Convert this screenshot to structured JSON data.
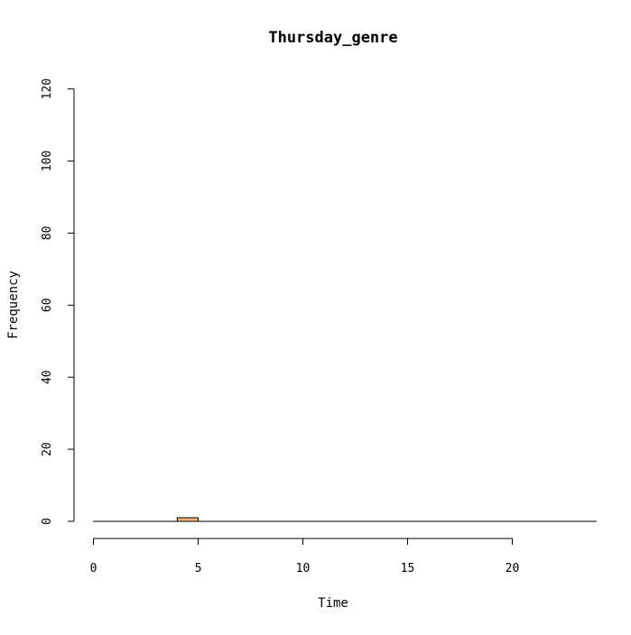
{
  "chart_data": {
    "type": "bar",
    "title": "Thursday_genre",
    "xlabel": "Time",
    "ylabel": "Frequency",
    "xlim": [
      0,
      24
    ],
    "ylim": [
      0,
      120
    ],
    "x_ticks": [
      "0",
      "5",
      "10",
      "15",
      "20"
    ],
    "y_ticks": [
      "0",
      "20",
      "40",
      "60",
      "80",
      "100",
      "120"
    ],
    "bin_width": 1,
    "bins": [
      0,
      1,
      2,
      3,
      4,
      5,
      6,
      7,
      8,
      9,
      10,
      11,
      12,
      13,
      14,
      15,
      16,
      17,
      18,
      19,
      20,
      21,
      22,
      23
    ],
    "values": [
      0,
      0,
      0,
      0,
      1,
      0,
      0,
      0,
      0,
      0,
      0,
      0,
      0,
      0,
      0,
      0,
      0,
      0,
      0,
      0,
      0,
      0,
      0,
      0
    ],
    "bar_color": "#f4b77a",
    "bar_border_color": "#000000",
    "grid": false
  }
}
